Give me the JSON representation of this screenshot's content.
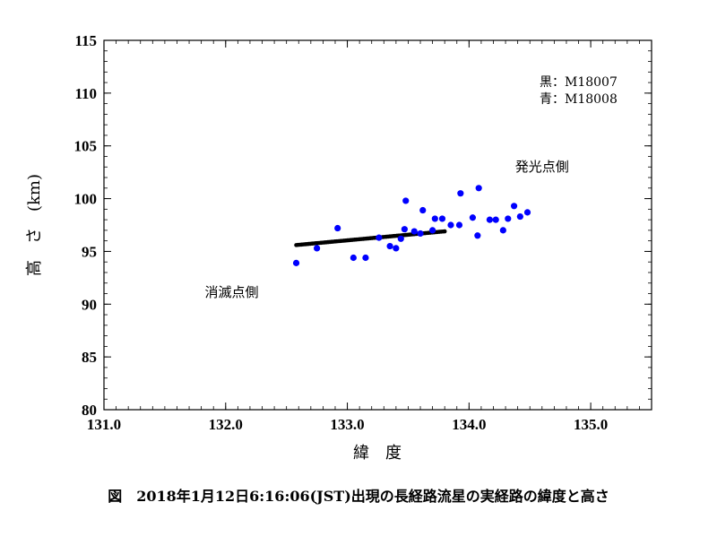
{
  "chart_data": {
    "type": "scatter",
    "xlabel": "緯　度",
    "ylabel": "高　さ　(km)",
    "xlim": [
      131.0,
      135.5
    ],
    "ylim": [
      80,
      115
    ],
    "x_ticks": [
      "131.0",
      "132.0",
      "133.0",
      "134.0",
      "135.0"
    ],
    "x_tick_values": [
      131.0,
      132.0,
      133.0,
      134.0,
      135.0
    ],
    "y_ticks": [
      "80",
      "85",
      "90",
      "95",
      "100",
      "105",
      "110",
      "115"
    ],
    "y_tick_values": [
      80,
      85,
      90,
      95,
      100,
      105,
      110,
      115
    ],
    "grid": false,
    "legend_lines": [
      "黒：M18007",
      "青：M18008"
    ],
    "annotations": [
      {
        "text": "発光点側",
        "x": 134.6,
        "y": 102.6
      },
      {
        "text": "消滅点側",
        "x": 132.05,
        "y": 90.7
      }
    ],
    "series": [
      {
        "color": "#000000",
        "line_from": [
          132.58,
          95.6
        ],
        "line_to": [
          133.8,
          96.9
        ],
        "points": 85
      },
      {
        "color": "#0000ff",
        "points": [
          [
            132.58,
            93.9
          ],
          [
            132.75,
            95.3
          ],
          [
            132.92,
            97.2
          ],
          [
            133.05,
            94.4
          ],
          [
            133.15,
            94.4
          ],
          [
            133.26,
            96.3
          ],
          [
            133.35,
            95.5
          ],
          [
            133.4,
            95.3
          ],
          [
            133.44,
            96.2
          ],
          [
            133.47,
            97.1
          ],
          [
            133.48,
            99.8
          ],
          [
            133.55,
            96.9
          ],
          [
            133.6,
            96.7
          ],
          [
            133.62,
            98.9
          ],
          [
            133.7,
            97.0
          ],
          [
            133.72,
            98.1
          ],
          [
            133.78,
            98.1
          ],
          [
            133.85,
            97.5
          ],
          [
            133.92,
            97.5
          ],
          [
            133.93,
            100.5
          ],
          [
            134.03,
            98.2
          ],
          [
            134.07,
            96.5
          ],
          [
            134.08,
            101.0
          ],
          [
            134.17,
            98.0
          ],
          [
            134.22,
            98.0
          ],
          [
            134.28,
            97.0
          ],
          [
            134.32,
            98.1
          ],
          [
            134.37,
            99.3
          ],
          [
            134.42,
            98.3
          ],
          [
            134.48,
            98.7
          ]
        ]
      }
    ]
  },
  "caption": "図　2018年1月12日6:16:06(JST)出現の長経路流星の実経路の緯度と高さ"
}
